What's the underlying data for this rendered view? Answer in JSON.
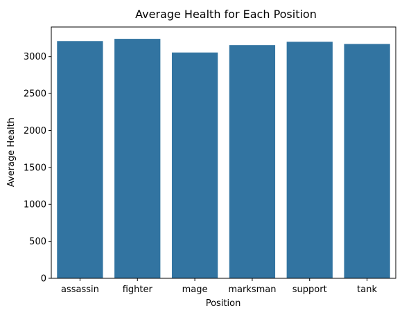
{
  "chart_data": {
    "type": "bar",
    "title": "Average Health for Each Position",
    "xlabel": "Position",
    "ylabel": "Average Health",
    "categories": [
      "assassin",
      "fighter",
      "mage",
      "marksman",
      "support",
      "tank"
    ],
    "values": [
      3210,
      3240,
      3055,
      3155,
      3200,
      3170
    ],
    "ylim": [
      0,
      3400
    ],
    "yticks": [
      0,
      500,
      1000,
      1500,
      2000,
      2500,
      3000
    ],
    "grid": false,
    "bar_color": "#3274a1"
  }
}
